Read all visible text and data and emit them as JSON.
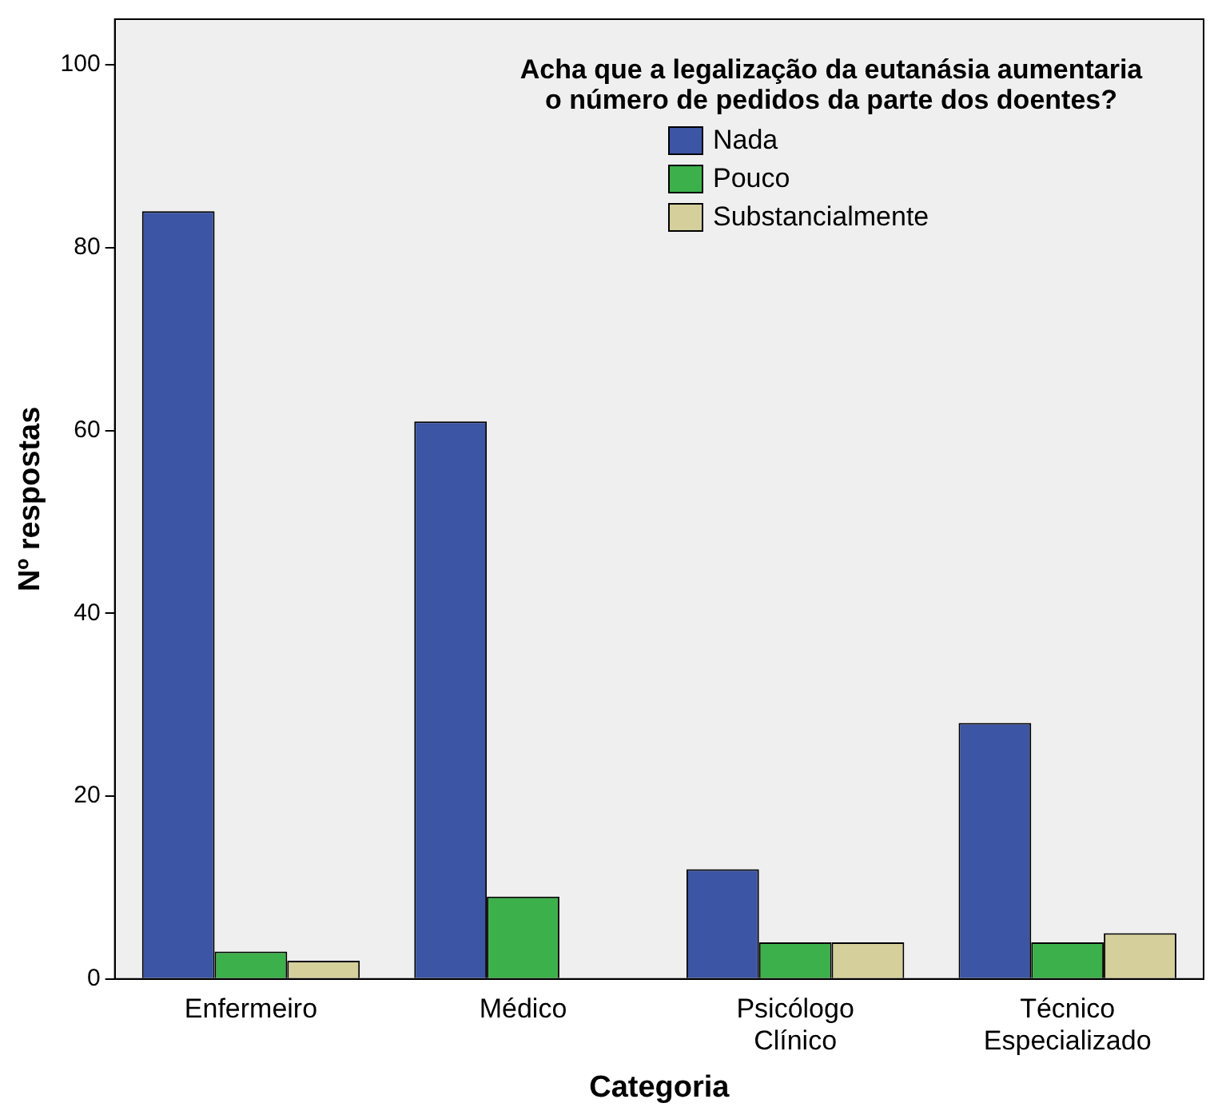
{
  "chart_data": {
    "type": "bar",
    "xlabel": "Categoria",
    "ylabel": "Nº respostas",
    "legend_title": "Acha que a legalização da eutanásia aumentaria o número de pedidos da parte dos doentes?",
    "categories": [
      "Enfermeiro",
      "Médico",
      "Psicólogo Clínico",
      "Técnico Especializado"
    ],
    "series": [
      {
        "name": "Nada",
        "color": "#3c55a4",
        "values": [
          84,
          61,
          12,
          28
        ]
      },
      {
        "name": "Pouco",
        "color": "#3cb04a",
        "values": [
          3,
          9,
          4,
          4
        ]
      },
      {
        "name": "Substancialmente",
        "color": "#d5cf9b",
        "values": [
          2,
          0,
          4,
          5
        ]
      }
    ],
    "ylim": [
      0,
      105
    ],
    "yticks": [
      0,
      20,
      40,
      60,
      80,
      100
    ],
    "grid": false,
    "legend": "top right"
  }
}
